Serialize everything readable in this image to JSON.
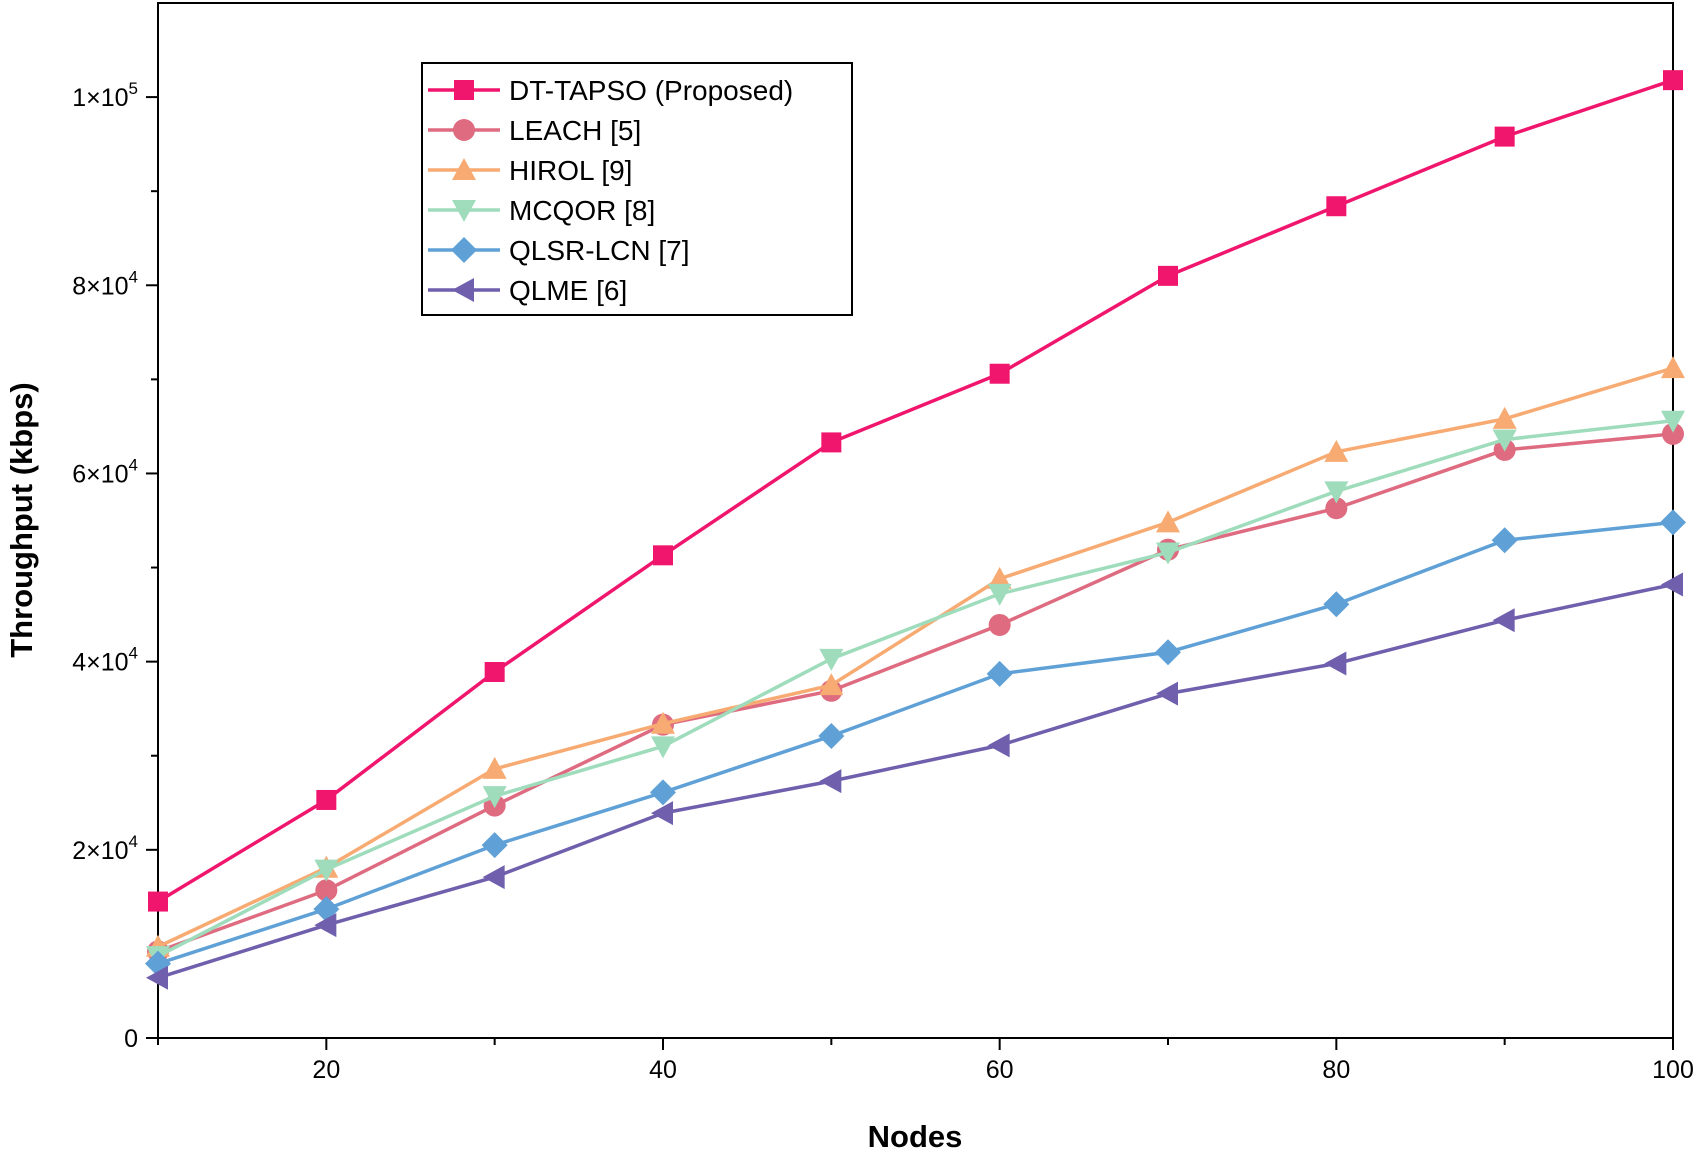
{
  "chart_data": {
    "type": "line",
    "title": "",
    "xlabel": "Nodes",
    "ylabel": "Throughput (kbps)",
    "xlim": [
      10,
      100
    ],
    "ylim": [
      0,
      110000
    ],
    "x_ticks": [
      20,
      40,
      60,
      80,
      100
    ],
    "y_ticks": [
      {
        "value": 0,
        "mantissa": "0",
        "exp": ""
      },
      {
        "value": 20000,
        "mantissa": "2×10",
        "exp": "4"
      },
      {
        "value": 40000,
        "mantissa": "4×10",
        "exp": "4"
      },
      {
        "value": 60000,
        "mantissa": "6×10",
        "exp": "4"
      },
      {
        "value": 80000,
        "mantissa": "8×10",
        "exp": "4"
      },
      {
        "value": 100000,
        "mantissa": "1×10",
        "exp": "5"
      }
    ],
    "grid": false,
    "legend_position": "top-left",
    "x": [
      10,
      20,
      30,
      40,
      50,
      60,
      70,
      80,
      90,
      100
    ],
    "series": [
      {
        "name": "DT-TAPSO (Proposed)",
        "color": "#f0166e",
        "marker": "square",
        "values": [
          14500,
          25300,
          38900,
          51300,
          63300,
          70600,
          81000,
          88400,
          95800,
          101800
        ]
      },
      {
        "name": "LEACH [5]",
        "color": "#de6b80",
        "marker": "circle",
        "values": [
          9200,
          15700,
          24700,
          33300,
          36900,
          43900,
          51900,
          56300,
          62500,
          64200
        ]
      },
      {
        "name": "HIROL [9]",
        "color": "#f7ab72",
        "marker": "triangle-up",
        "values": [
          9700,
          18100,
          28600,
          33400,
          37500,
          48800,
          54800,
          62300,
          65800,
          71200
        ]
      },
      {
        "name": "MCQOR [8]",
        "color": "#9edcbc",
        "marker": "triangle-down",
        "values": [
          8700,
          17900,
          25700,
          31000,
          40300,
          47200,
          51600,
          58100,
          63600,
          65600
        ]
      },
      {
        "name": "QLSR-LCN [7]",
        "color": "#5fa1d6",
        "marker": "diamond",
        "values": [
          7900,
          13700,
          20500,
          26100,
          32100,
          38700,
          41000,
          46100,
          52900,
          54800
        ]
      },
      {
        "name": "QLME [6]",
        "color": "#6f5fad",
        "marker": "triangle-left",
        "values": [
          6400,
          12000,
          17100,
          23900,
          27300,
          31100,
          36600,
          39800,
          44400,
          48200
        ]
      }
    ]
  }
}
